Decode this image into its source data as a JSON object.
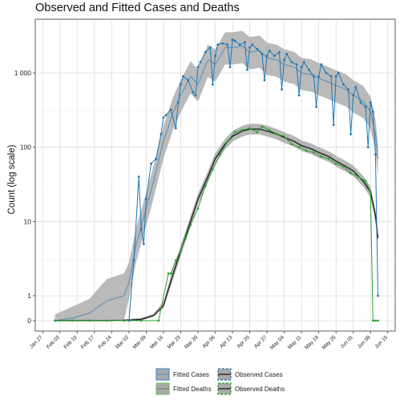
{
  "chart_data": {
    "type": "line",
    "title": "Observed and Fitted Cases and Deaths",
    "xlabel": "",
    "ylabel": "Count (log scale)",
    "y_scale": "log (pseudo-log, zero shown at bottom)",
    "y_ticks": [
      {
        "value": 0,
        "label": "0"
      },
      {
        "value": 1,
        "label": "1"
      },
      {
        "value": 10,
        "label": "10"
      },
      {
        "value": 100,
        "label": "100"
      },
      {
        "value": 1000,
        "label": "1 000"
      }
    ],
    "x_range": [
      "2020-01-27",
      "2020-06-15"
    ],
    "x_ticks": [
      "Jan 27",
      "Feb 03",
      "Feb 10",
      "Feb 17",
      "Feb 24",
      "Mar 02",
      "Mar 09",
      "Mar 16",
      "Mar 23",
      "Mar 30",
      "Apr 06",
      "Apr 13",
      "Apr 20",
      "Apr 27",
      "May 04",
      "May 11",
      "May 18",
      "May 25",
      "Jun 01",
      "Jun 08",
      "Jun 15"
    ],
    "grid": true,
    "legend_position": "bottom",
    "legend": [
      {
        "label": "Fitted Cases",
        "key": "fitted_cases"
      },
      {
        "label": "Fitted Deaths",
        "key": "fitted_deaths"
      },
      {
        "label": "Observed Cases",
        "key": "observed_cases"
      },
      {
        "label": "Observed Deaths",
        "key": "observed_deaths"
      }
    ],
    "colors": {
      "cases": "#1f77b4",
      "deaths": "#2ca02c",
      "fitted_cases": "#5f90b8",
      "fitted_deaths": "#222222",
      "band": "#a9a9a9",
      "band_border_cases": "#4a90c8",
      "band_border_deaths": "#7cc36a"
    },
    "series": [
      {
        "name": "Observed Cases",
        "key": "observed_cases",
        "x": [
          "2020-02-01",
          "2020-02-08",
          "2020-02-15",
          "2020-02-22",
          "2020-02-29",
          "2020-03-02",
          "2020-03-04",
          "2020-03-06",
          "2020-03-07",
          "2020-03-08",
          "2020-03-09",
          "2020-03-11",
          "2020-03-13",
          "2020-03-15",
          "2020-03-16",
          "2020-03-17",
          "2020-03-19",
          "2020-03-21",
          "2020-03-22",
          "2020-03-23",
          "2020-03-24",
          "2020-03-26",
          "2020-03-28",
          "2020-03-29",
          "2020-03-30",
          "2020-03-31",
          "2020-04-02",
          "2020-04-04",
          "2020-04-05",
          "2020-04-06",
          "2020-04-07",
          "2020-04-09",
          "2020-04-11",
          "2020-04-12",
          "2020-04-13",
          "2020-04-14",
          "2020-04-16",
          "2020-04-18",
          "2020-04-19",
          "2020-04-20",
          "2020-04-21",
          "2020-04-23",
          "2020-04-25",
          "2020-04-26",
          "2020-04-27",
          "2020-04-28",
          "2020-04-30",
          "2020-05-02",
          "2020-05-03",
          "2020-05-04",
          "2020-05-05",
          "2020-05-07",
          "2020-05-09",
          "2020-05-10",
          "2020-05-11",
          "2020-05-12",
          "2020-05-14",
          "2020-05-16",
          "2020-05-17",
          "2020-05-18",
          "2020-05-19",
          "2020-05-21",
          "2020-05-23",
          "2020-05-24",
          "2020-05-25",
          "2020-05-26",
          "2020-05-28",
          "2020-05-30",
          "2020-05-31",
          "2020-06-01",
          "2020-06-02",
          "2020-06-04",
          "2020-06-06",
          "2020-06-07",
          "2020-06-08",
          "2020-06-09",
          "2020-06-10",
          "2020-06-11"
        ],
        "y": [
          0,
          0,
          0,
          0,
          0,
          0,
          3,
          40,
          8,
          5,
          20,
          60,
          70,
          150,
          250,
          270,
          320,
          180,
          400,
          700,
          900,
          800,
          550,
          500,
          1200,
          1400,
          1900,
          2200,
          700,
          1700,
          2400,
          2500,
          2400,
          1200,
          2800,
          2700,
          2400,
          2600,
          1100,
          2200,
          2400,
          2100,
          1800,
          800,
          1700,
          2000,
          1700,
          1900,
          600,
          1500,
          1800,
          1400,
          1300,
          500,
          1200,
          1400,
          1100,
          900,
          350,
          900,
          1300,
          1000,
          900,
          200,
          900,
          1000,
          700,
          600,
          150,
          500,
          650,
          400,
          350,
          100,
          400,
          300,
          80,
          1
        ]
      },
      {
        "name": "Observed Deaths",
        "key": "observed_deaths",
        "x": [
          "2020-02-01",
          "2020-02-08",
          "2020-02-15",
          "2020-02-22",
          "2020-02-29",
          "2020-03-07",
          "2020-03-14",
          "2020-03-18",
          "2020-03-19",
          "2020-03-21",
          "2020-03-23",
          "2020-03-25",
          "2020-03-27",
          "2020-03-30",
          "2020-04-02",
          "2020-04-05",
          "2020-04-08",
          "2020-04-11",
          "2020-04-14",
          "2020-04-17",
          "2020-04-20",
          "2020-04-23",
          "2020-04-25",
          "2020-04-28",
          "2020-05-01",
          "2020-05-04",
          "2020-05-07",
          "2020-05-10",
          "2020-05-13",
          "2020-05-16",
          "2020-05-19",
          "2020-05-22",
          "2020-05-25",
          "2020-05-28",
          "2020-05-31",
          "2020-06-03",
          "2020-06-06",
          "2020-06-08",
          "2020-06-09",
          "2020-06-10",
          "2020-06-11"
        ],
        "y": [
          0,
          0,
          0,
          0,
          0,
          0,
          0,
          2,
          2,
          3,
          4,
          6,
          9,
          15,
          30,
          50,
          80,
          120,
          160,
          170,
          180,
          160,
          190,
          170,
          150,
          140,
          110,
          100,
          90,
          85,
          75,
          70,
          60,
          55,
          45,
          40,
          35,
          25,
          0,
          0,
          0
        ]
      },
      {
        "name": "Fitted Cases",
        "key": "fitted_cases",
        "x": [
          "2020-02-01",
          "2020-02-08",
          "2020-02-15",
          "2020-02-22",
          "2020-02-29",
          "2020-03-02",
          "2020-03-05",
          "2020-03-09",
          "2020-03-12",
          "2020-03-16",
          "2020-03-20",
          "2020-03-23",
          "2020-03-27",
          "2020-03-30",
          "2020-04-03",
          "2020-04-06",
          "2020-04-10",
          "2020-04-13",
          "2020-04-17",
          "2020-04-20",
          "2020-04-24",
          "2020-04-27",
          "2020-05-01",
          "2020-05-04",
          "2020-05-08",
          "2020-05-11",
          "2020-05-15",
          "2020-05-18",
          "2020-05-22",
          "2020-05-25",
          "2020-05-29",
          "2020-06-01",
          "2020-06-05",
          "2020-06-08",
          "2020-06-10",
          "2020-06-11"
        ],
        "y": [
          0,
          0.1,
          0.3,
          0.8,
          1,
          1.5,
          5,
          15,
          35,
          120,
          300,
          500,
          900,
          700,
          1500,
          1300,
          2200,
          2200,
          2300,
          1900,
          2000,
          1600,
          1500,
          1300,
          1200,
          1000,
          950,
          850,
          750,
          680,
          600,
          500,
          420,
          300,
          150,
          70
        ]
      },
      {
        "name": "Fitted Deaths",
        "key": "fitted_deaths",
        "x": [
          "2020-02-01",
          "2020-02-08",
          "2020-02-15",
          "2020-02-22",
          "2020-02-29",
          "2020-03-07",
          "2020-03-12",
          "2020-03-16",
          "2020-03-20",
          "2020-03-23",
          "2020-03-27",
          "2020-03-30",
          "2020-04-03",
          "2020-04-06",
          "2020-04-10",
          "2020-04-13",
          "2020-04-17",
          "2020-04-20",
          "2020-04-24",
          "2020-04-27",
          "2020-05-01",
          "2020-05-04",
          "2020-05-08",
          "2020-05-11",
          "2020-05-15",
          "2020-05-18",
          "2020-05-22",
          "2020-05-25",
          "2020-05-29",
          "2020-06-01",
          "2020-06-05",
          "2020-06-08",
          "2020-06-10",
          "2020-06-11"
        ],
        "y": [
          0,
          0,
          0,
          0,
          0.01,
          0.05,
          0.2,
          0.6,
          2,
          4,
          10,
          20,
          40,
          70,
          110,
          140,
          165,
          175,
          175,
          165,
          150,
          135,
          120,
          105,
          95,
          85,
          75,
          65,
          55,
          48,
          35,
          25,
          12,
          6
        ]
      }
    ]
  }
}
